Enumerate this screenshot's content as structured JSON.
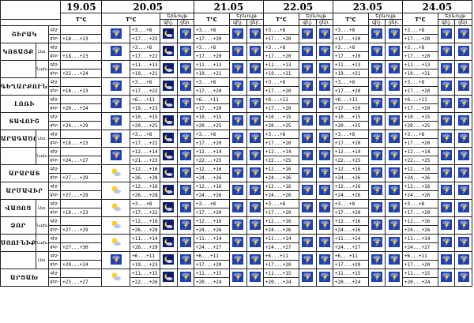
{
  "header": {
    "dates": [
      "19.05",
      "20.05",
      "21.05",
      "22.05",
      "23.05",
      "24.05"
    ],
    "temp_label": "T°C",
    "phenomena_label": "Երևույթ",
    "night_short": "գիշ.",
    "day_short": "ցեր.",
    "night_full": "գիշ-",
    "day_full": "ցեր-"
  },
  "regions": [
    {
      "name": "ՇԻՐԱԿ",
      "sub": "",
      "night": "",
      "day": "+18...+23",
      "days": [
        [
          "+3...+8",
          "+17...+22"
        ],
        [
          "+3...+8",
          "+17...+20"
        ],
        [
          "+3...+8",
          "+17...+20"
        ],
        [
          "+3...+8",
          "+17...+20"
        ],
        [
          "+3...+8",
          "+17...+20"
        ]
      ]
    },
    {
      "name": "ԿՈՏԱՅՔ",
      "sub": "Լեռ.",
      "night": "",
      "day": "+18...+23",
      "days": [
        [
          "+3...+8",
          "+17...+22"
        ],
        [
          "+3...+8",
          "+17...+20"
        ],
        [
          "+3...+8",
          "+17...+20"
        ],
        [
          "+3...+8",
          "+17...+20"
        ],
        [
          "+3...+8",
          "+17...+20"
        ]
      ]
    },
    {
      "name": "",
      "sub": "Նախ.",
      "night": "",
      "day": "+22...+24",
      "days": [
        [
          "+11...+13",
          "+19...+21"
        ],
        [
          "+11...+13",
          "+19...+21"
        ],
        [
          "+11...+13",
          "+19...+21"
        ],
        [
          "+11...+13",
          "+19...+21"
        ],
        [
          "+11...+13",
          "+19...+21"
        ]
      ]
    },
    {
      "name": "ԳԵՂԱՐՔՈՒՆԻՔ",
      "sub": "",
      "night": "",
      "day": "+18...+23",
      "days": [
        [
          "+3...+8",
          "+17...+22"
        ],
        [
          "+3...+8",
          "+17...+20"
        ],
        [
          "+3...+8",
          "+17...+20"
        ],
        [
          "+3...+8",
          "+17...+20"
        ],
        [
          "+3...+8",
          "+17...+20"
        ]
      ]
    },
    {
      "name": "ԼՈՌԻ",
      "sub": "",
      "night": "",
      "day": "+20...+24",
      "days": [
        [
          "+6...+11",
          "+19...+23"
        ],
        [
          "+6...+11",
          "+17...+20"
        ],
        [
          "+6...+11",
          "+17...+20"
        ],
        [
          "+6...+11",
          "+17...+20"
        ],
        [
          "+6...+11",
          "+17...+20"
        ]
      ]
    },
    {
      "name": "ՏԱՎՈՒՇ",
      "sub": "",
      "night": "",
      "day": "+24...+29",
      "days": [
        [
          "+10...+15",
          "+20...+25"
        ],
        [
          "+10...+15",
          "+20...+25"
        ],
        [
          "+10...+15",
          "+20...+25"
        ],
        [
          "+10...+15",
          "+20...+25"
        ],
        [
          "+10...+15",
          "+20...+25"
        ]
      ]
    },
    {
      "name": "ԱՐԱԳԱԾՈՏՆ",
      "sub": "Լեռ.",
      "night": "",
      "day": "+18...+23",
      "days": [
        [
          "+3...+8",
          "+17...+22"
        ],
        [
          "+3...+8",
          "+17...+20"
        ],
        [
          "+3...+8",
          "+17...+20"
        ],
        [
          "+3...+8",
          "+17...+20"
        ],
        [
          "+3...+8",
          "+17...+20"
        ]
      ]
    },
    {
      "name": "",
      "sub": "Նախ.",
      "night": "",
      "day": "+24...+27",
      "days": [
        [
          "+12...+14",
          "+21...+23"
        ],
        [
          "+12...+14",
          "+22...+25"
        ],
        [
          "+12...+14",
          "+22...+25"
        ],
        [
          "+12...+14",
          "+22...+25"
        ],
        [
          "+12...+14",
          "+22...+25"
        ]
      ]
    },
    {
      "name": "ԱՐԱՐԱՏ",
      "sub": "",
      "night": "",
      "day": "+27...+29",
      "days": [
        [
          "+12...+16",
          "+26...+28"
        ],
        [
          "+12...+16",
          "+24...+26"
        ],
        [
          "+12...+16",
          "+24...+26"
        ],
        [
          "+12...+16",
          "+24...+26"
        ],
        [
          "+12...+16",
          "+24...+26"
        ]
      ]
    },
    {
      "name": "ԱՐՄԱՎԻՐ",
      "sub": "",
      "night": "",
      "day": "+27...+29",
      "days": [
        [
          "+12...+16",
          "+26...+28"
        ],
        [
          "+12...+16",
          "+24...+26"
        ],
        [
          "+12...+16",
          "+24...+26"
        ],
        [
          "+12...+16",
          "+24...+26"
        ],
        [
          "+12...+16",
          "+24...+26"
        ]
      ]
    },
    {
      "name": "ՎԱՅՈՑ",
      "sub": "Լեռ.",
      "night": "",
      "day": "+18...+23",
      "days": [
        [
          "+3...+8",
          "+17...+22"
        ],
        [
          "+3...+8",
          "+17...+20"
        ],
        [
          "+3...+8",
          "+17...+20"
        ],
        [
          "+3...+8",
          "+17...+20"
        ],
        [
          "+3...+8",
          "+17...+20"
        ]
      ]
    },
    {
      "name": "ՁՈՐ",
      "sub": "Նախ.",
      "night": "",
      "day": "+27...+29",
      "days": [
        [
          "+12...+16",
          "+26...+28"
        ],
        [
          "+12...+16",
          "+24...+26"
        ],
        [
          "+12...+16",
          "+24...+26"
        ],
        [
          "+12...+16",
          "+24...+26"
        ],
        [
          "+12...+16",
          "+24...+26"
        ]
      ]
    },
    {
      "name": "ՍՅՈՒՆԻՔ",
      "sub": "Նախ.",
      "night": "",
      "day": "+27...+30",
      "days": [
        [
          "+11...+14",
          "+26...+29"
        ],
        [
          "+11...+14",
          "+24...+27"
        ],
        [
          "+11...+14",
          "+24...+27"
        ],
        [
          "+11...+14",
          "+24...+27"
        ],
        [
          "+11...+14",
          "+24...+27"
        ]
      ]
    },
    {
      "name": "",
      "sub": "Լեռ.",
      "night": "",
      "day": "+20...+24",
      "days": [
        [
          "+6...+11",
          "+19...+23"
        ],
        [
          "+6...+11",
          "+17...+20"
        ],
        [
          "+6...+11",
          "+17...+20"
        ],
        [
          "+6...+11",
          "+17...+20"
        ],
        [
          "+6...+11",
          "+17...+20"
        ]
      ]
    },
    {
      "name": "ԱՐՑԱԽ",
      "sub": "",
      "night": "",
      "day": "+23...+27",
      "days": [
        [
          "+11...+15",
          "+22...+26"
        ],
        [
          "+11...+15",
          "+20...+24"
        ],
        [
          "+11...+15",
          "+20...+24"
        ],
        [
          "+11...+15",
          "+20...+24"
        ],
        [
          "+11...+15",
          "+20...+24"
        ]
      ]
    }
  ],
  "icons": {
    "day1": [
      "storm-icon",
      "storm-icon",
      "storm-icon",
      "storm-icon",
      "storm-icon",
      "storm-icon",
      "storm-icon",
      "storm-icon",
      "partly-cloudy-icon",
      "partly-cloudy-icon",
      "partly-cloudy-icon",
      "partly-cloudy-icon",
      "partly-cloudy-icon",
      "storm-icon",
      "partly-cloudy-icon"
    ]
  },
  "colors": {
    "icon_sky": "#1d3fb8",
    "icon_night": "#0b1c6e",
    "bolt": "#ffd21a",
    "sun": "#ffcf1f"
  }
}
